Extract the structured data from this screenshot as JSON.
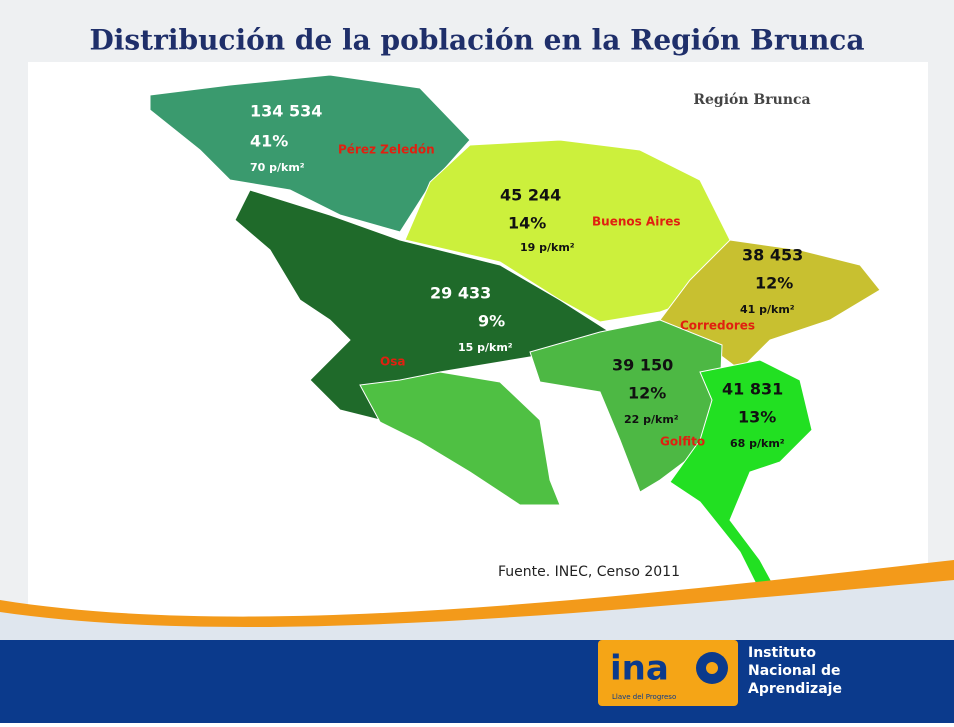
{
  "header": {
    "title": "Distribución de la población en la Región Brunca"
  },
  "map": {
    "label": "Región Brunca",
    "regions": [
      {
        "name": "Pérez Zeledón",
        "population": "134 534",
        "percent": "41%",
        "density": "70 p/km²"
      },
      {
        "name": "Buenos Aires",
        "population": "45 244",
        "percent": "14%",
        "density": "19 p/km²"
      },
      {
        "name": "Corredores",
        "population": "38 453",
        "percent": "12%",
        "density": "41 p/km²"
      },
      {
        "name": "Osa",
        "population": "29 433",
        "percent": "9%",
        "density": "15 p/km²"
      },
      {
        "name": "Golfito",
        "population": "39 150",
        "percent": "12%",
        "density": "22 p/km²"
      },
      {
        "population": "41 831",
        "percent": "13%",
        "density": "68 p/km²"
      }
    ],
    "source": "Fuente. INEC, Censo 2011"
  },
  "footer": {
    "logo": "ina",
    "slogan": "Llave del Progreso",
    "institution": [
      "Instituto",
      "Nacional de",
      "Aprendizaje"
    ]
  }
}
